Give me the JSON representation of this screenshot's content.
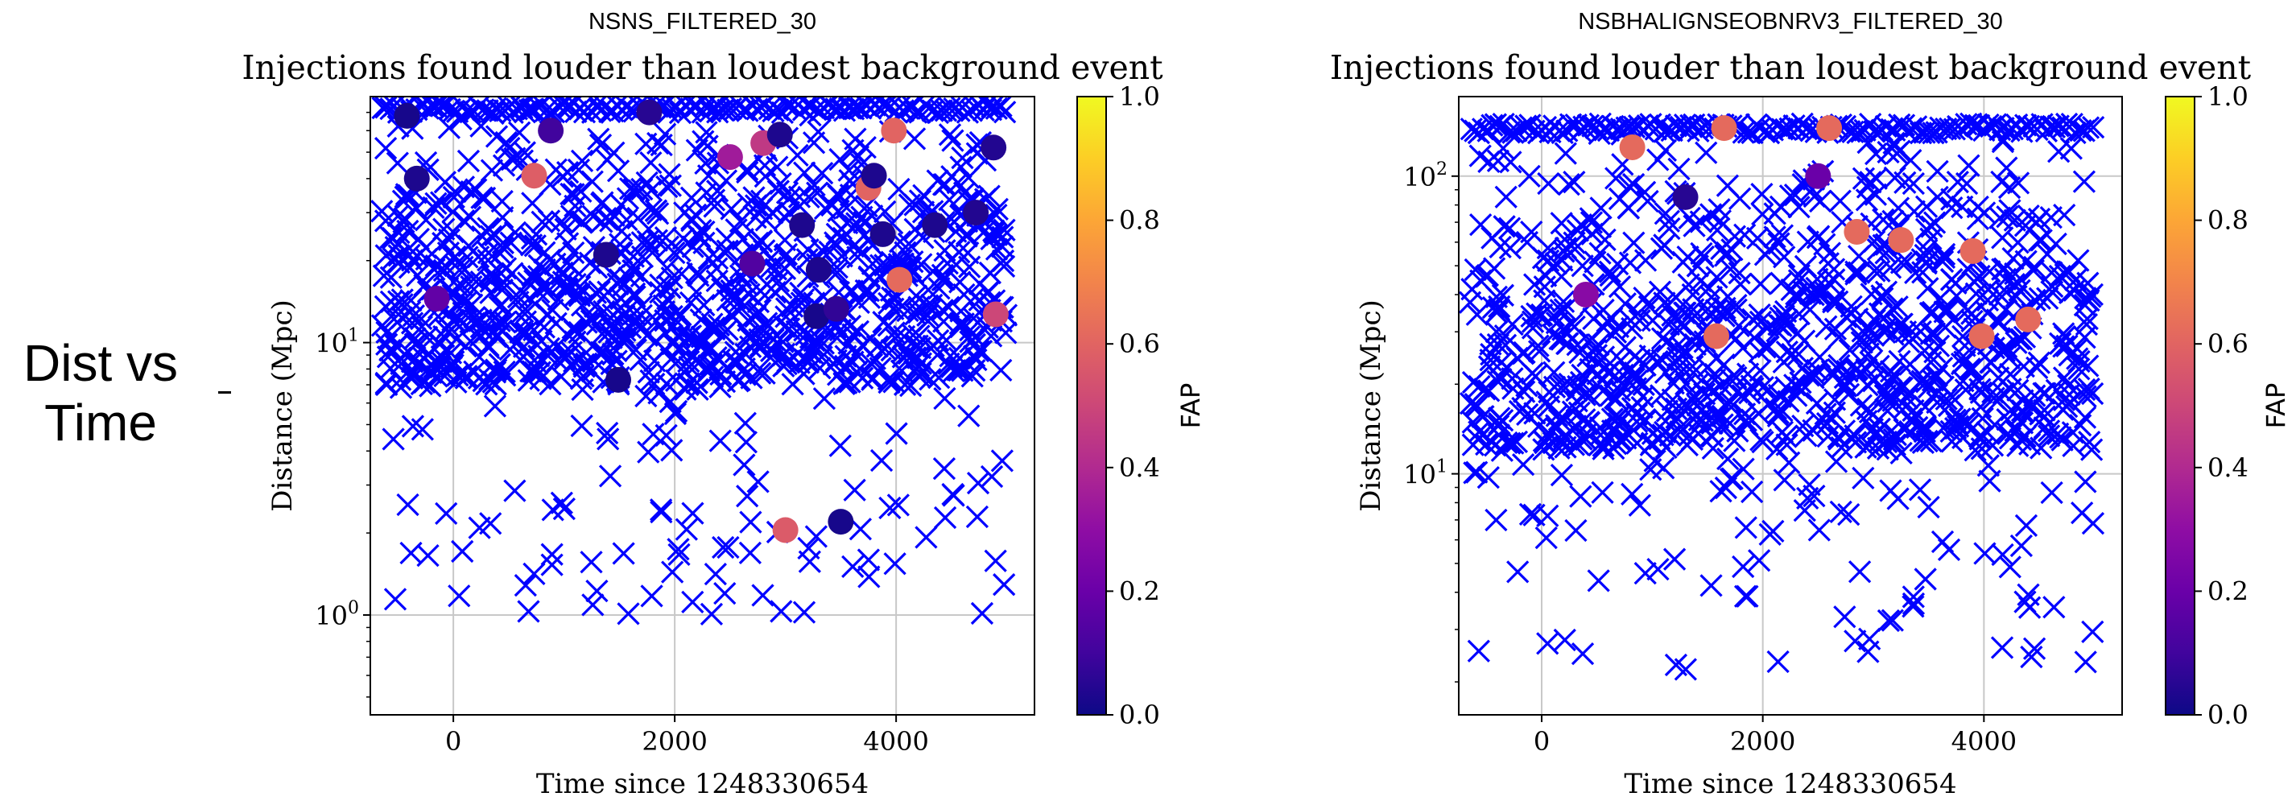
{
  "slide": {
    "label_line1": "Dist vs",
    "label_line2": "Time"
  },
  "colors": {
    "injection_marker": "#0000ff",
    "grid": "#c8c8c8"
  },
  "chart_data": [
    {
      "type": "scatter",
      "header": "NSNS_FILTERED_30",
      "title": "Injections found louder than loudest background event",
      "xlabel": "Time since 1248330654",
      "ylabel": "Distance (Mpc)",
      "yscale": "log",
      "xlim": [
        -750,
        5250
      ],
      "ylim": [
        0.43,
        80
      ],
      "xticks": [
        0,
        2000,
        4000
      ],
      "xtick_labels": [
        "0",
        "2000",
        "4000"
      ],
      "yticks": [
        1,
        10
      ],
      "ytick_labels": [
        "10^0",
        "10^1"
      ],
      "colorbar": {
        "label": "FAP",
        "colormap": "plasma",
        "ticks": [
          "0.0",
          "0.2",
          "0.4",
          "0.6",
          "0.8",
          "1.0"
        ]
      },
      "marker_band_top": 75,
      "cross_seed": 7,
      "dense": {
        "count": 1000,
        "ymin": 7,
        "ymax": 75
      },
      "sparse": {
        "count": 110,
        "ymin": 1.0,
        "ymax": 8
      },
      "found_events": [
        {
          "x": -420,
          "y": 68,
          "fap": 0.02
        },
        {
          "x": -330,
          "y": 40,
          "fap": 0.03
        },
        {
          "x": -150,
          "y": 14.5,
          "fap": 0.18
        },
        {
          "x": 730,
          "y": 41,
          "fap": 0.58
        },
        {
          "x": 880,
          "y": 60,
          "fap": 0.1
        },
        {
          "x": 1770,
          "y": 70,
          "fap": 0.05
        },
        {
          "x": 1380,
          "y": 21,
          "fap": 0.03
        },
        {
          "x": 1490,
          "y": 7.3,
          "fap": 0.02
        },
        {
          "x": 2500,
          "y": 48,
          "fap": 0.35
        },
        {
          "x": 2800,
          "y": 54,
          "fap": 0.45
        },
        {
          "x": 2950,
          "y": 58,
          "fap": 0.03
        },
        {
          "x": 2700,
          "y": 19.5,
          "fap": 0.14
        },
        {
          "x": 3150,
          "y": 27,
          "fap": 0.03
        },
        {
          "x": 3300,
          "y": 18.5,
          "fap": 0.03
        },
        {
          "x": 3280,
          "y": 12.5,
          "fap": 0.02
        },
        {
          "x": 3460,
          "y": 13.3,
          "fap": 0.07
        },
        {
          "x": 3750,
          "y": 37,
          "fap": 0.6
        },
        {
          "x": 3800,
          "y": 41,
          "fap": 0.03
        },
        {
          "x": 3880,
          "y": 25,
          "fap": 0.03
        },
        {
          "x": 3980,
          "y": 60,
          "fap": 0.6
        },
        {
          "x": 4030,
          "y": 17,
          "fap": 0.62
        },
        {
          "x": 4350,
          "y": 27,
          "fap": 0.03
        },
        {
          "x": 4720,
          "y": 30,
          "fap": 0.04
        },
        {
          "x": 4880,
          "y": 52,
          "fap": 0.04
        },
        {
          "x": 4900,
          "y": 12.7,
          "fap": 0.5
        },
        {
          "x": 3000,
          "y": 2.05,
          "fap": 0.57
        },
        {
          "x": 3500,
          "y": 2.2,
          "fap": 0.02
        }
      ]
    },
    {
      "type": "scatter",
      "header": "NSBHALIGNSEOBNRV3_FILTERED_30",
      "title": "Injections found louder than loudest background event",
      "xlabel": "Time since 1248330654",
      "ylabel": "Distance (Mpc)",
      "yscale": "log",
      "xlim": [
        -750,
        5250
      ],
      "ylim": [
        1.55,
        185
      ],
      "xticks": [
        0,
        2000,
        4000
      ],
      "xtick_labels": [
        "0",
        "2000",
        "4000"
      ],
      "yticks": [
        10,
        100
      ],
      "ytick_labels": [
        "10^1",
        "10^2"
      ],
      "colorbar": {
        "label": "FAP",
        "colormap": "plasma",
        "ticks": [
          "0.0",
          "0.2",
          "0.4",
          "0.6",
          "0.8",
          "1.0"
        ]
      },
      "marker_band_top": 150,
      "cross_seed": 19,
      "dense": {
        "count": 950,
        "ymin": 12,
        "ymax": 150
      },
      "sparse": {
        "count": 110,
        "ymin": 2.1,
        "ymax": 15
      },
      "found_events": [
        {
          "x": 820,
          "y": 125,
          "fap": 0.62
        },
        {
          "x": 1650,
          "y": 145,
          "fap": 0.62
        },
        {
          "x": 2600,
          "y": 145,
          "fap": 0.62
        },
        {
          "x": 1300,
          "y": 85,
          "fap": 0.05
        },
        {
          "x": 2500,
          "y": 100,
          "fap": 0.2
        },
        {
          "x": 2850,
          "y": 65,
          "fap": 0.62
        },
        {
          "x": 3250,
          "y": 61,
          "fap": 0.62
        },
        {
          "x": 3900,
          "y": 56,
          "fap": 0.62
        },
        {
          "x": 400,
          "y": 40,
          "fap": 0.28
        },
        {
          "x": 1580,
          "y": 29,
          "fap": 0.62
        },
        {
          "x": 3980,
          "y": 29,
          "fap": 0.62
        },
        {
          "x": 4400,
          "y": 33,
          "fap": 0.62
        }
      ]
    }
  ]
}
